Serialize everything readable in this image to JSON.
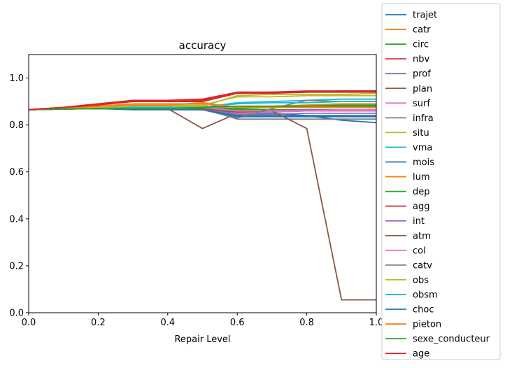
{
  "chart_data": {
    "type": "line",
    "title": "accuracy",
    "xlabel": "Repair Level",
    "ylabel": "",
    "xlim": [
      0,
      1
    ],
    "ylim": [
      0,
      1.1
    ],
    "xticks": [
      "0.0",
      "0.2",
      "0.4",
      "0.6",
      "0.8",
      "1.0"
    ],
    "yticks": [
      "0.0",
      "0.2",
      "0.4",
      "0.6",
      "0.8",
      "1.0"
    ],
    "grid": false,
    "legend_position": "right (outside plot area)",
    "x": [
      0.0,
      0.1,
      0.2,
      0.3,
      0.4,
      0.5,
      0.6,
      0.7,
      0.8,
      0.9,
      1.0
    ],
    "series": [
      {
        "name": "trajet",
        "color": "#1f77b4",
        "values": [
          0.865,
          0.868,
          0.87,
          0.87,
          0.87,
          0.87,
          0.85,
          0.85,
          0.84,
          0.82,
          0.81
        ]
      },
      {
        "name": "catr",
        "color": "#ff7f0e",
        "values": [
          0.865,
          0.87,
          0.88,
          0.89,
          0.89,
          0.89,
          0.875,
          0.88,
          0.885,
          0.89,
          0.89
        ]
      },
      {
        "name": "circ",
        "color": "#2ca02c",
        "values": [
          0.865,
          0.868,
          0.87,
          0.87,
          0.87,
          0.87,
          0.865,
          0.865,
          0.865,
          0.865,
          0.865
        ]
      },
      {
        "name": "nbv",
        "color": "#d62728",
        "values": [
          0.865,
          0.875,
          0.89,
          0.9,
          0.9,
          0.9,
          0.935,
          0.935,
          0.94,
          0.94,
          0.94
        ]
      },
      {
        "name": "prof",
        "color": "#9467bd",
        "values": [
          0.865,
          0.868,
          0.875,
          0.88,
          0.88,
          0.875,
          0.855,
          0.86,
          0.865,
          0.865,
          0.865
        ]
      },
      {
        "name": "plan",
        "color": "#8c564b",
        "values": [
          0.865,
          0.868,
          0.87,
          0.87,
          0.87,
          0.785,
          0.85,
          0.855,
          0.86,
          0.86,
          0.86
        ]
      },
      {
        "name": "surf",
        "color": "#e377c2",
        "values": [
          0.865,
          0.87,
          0.88,
          0.88,
          0.88,
          0.885,
          0.85,
          0.855,
          0.86,
          0.865,
          0.865
        ]
      },
      {
        "name": "infra",
        "color": "#7f7f7f",
        "values": [
          0.865,
          0.868,
          0.87,
          0.87,
          0.87,
          0.87,
          0.825,
          0.825,
          0.825,
          0.825,
          0.825
        ]
      },
      {
        "name": "situ",
        "color": "#bcbd22",
        "values": [
          0.865,
          0.87,
          0.88,
          0.885,
          0.885,
          0.885,
          0.92,
          0.92,
          0.925,
          0.925,
          0.925
        ]
      },
      {
        "name": "vma",
        "color": "#17becf",
        "values": [
          0.865,
          0.868,
          0.87,
          0.875,
          0.875,
          0.875,
          0.895,
          0.9,
          0.905,
          0.91,
          0.91
        ]
      },
      {
        "name": "mois",
        "color": "#1f77b4",
        "values": [
          0.865,
          0.868,
          0.87,
          0.87,
          0.87,
          0.865,
          0.84,
          0.84,
          0.84,
          0.84,
          0.84
        ]
      },
      {
        "name": "lum",
        "color": "#ff7f0e",
        "values": [
          0.865,
          0.87,
          0.875,
          0.88,
          0.88,
          0.88,
          0.87,
          0.875,
          0.875,
          0.875,
          0.875
        ]
      },
      {
        "name": "dep",
        "color": "#2ca02c",
        "values": [
          0.865,
          0.868,
          0.87,
          0.87,
          0.87,
          0.87,
          0.87,
          0.875,
          0.88,
          0.88,
          0.88
        ]
      },
      {
        "name": "agg",
        "color": "#d62728",
        "values": [
          0.865,
          0.875,
          0.89,
          0.905,
          0.905,
          0.91,
          0.94,
          0.94,
          0.945,
          0.945,
          0.945
        ]
      },
      {
        "name": "int",
        "color": "#9467bd",
        "values": [
          0.865,
          0.868,
          0.87,
          0.875,
          0.875,
          0.87,
          0.845,
          0.845,
          0.85,
          0.85,
          0.85
        ]
      },
      {
        "name": "atm",
        "color": "#8c564b",
        "values": [
          0.865,
          0.868,
          0.87,
          0.87,
          0.87,
          0.87,
          0.855,
          0.86,
          0.785,
          0.055,
          0.055
        ]
      },
      {
        "name": "col",
        "color": "#e377c2",
        "values": [
          0.865,
          0.868,
          0.87,
          0.875,
          0.875,
          0.875,
          0.86,
          0.86,
          0.86,
          0.86,
          0.86
        ]
      },
      {
        "name": "catv",
        "color": "#7f7f7f",
        "values": [
          0.865,
          0.868,
          0.87,
          0.87,
          0.87,
          0.865,
          0.83,
          0.87,
          0.905,
          0.9,
          0.9
        ]
      },
      {
        "name": "obs",
        "color": "#bcbd22",
        "values": [
          0.865,
          0.868,
          0.875,
          0.88,
          0.88,
          0.88,
          0.925,
          0.93,
          0.93,
          0.93,
          0.935
        ]
      },
      {
        "name": "obsm",
        "color": "#17becf",
        "values": [
          0.865,
          0.868,
          0.87,
          0.875,
          0.875,
          0.875,
          0.89,
          0.895,
          0.895,
          0.9,
          0.9
        ]
      },
      {
        "name": "choc",
        "color": "#1f77b4",
        "values": [
          0.865,
          0.868,
          0.87,
          0.865,
          0.865,
          0.865,
          0.835,
          0.835,
          0.835,
          0.835,
          0.835
        ]
      },
      {
        "name": "pieton",
        "color": "#ff7f0e",
        "values": [
          0.865,
          0.87,
          0.88,
          0.885,
          0.885,
          0.895,
          0.875,
          0.875,
          0.875,
          0.875,
          0.875
        ]
      },
      {
        "name": "sexe_conducteur",
        "color": "#2ca02c",
        "values": [
          0.865,
          0.868,
          0.87,
          0.87,
          0.87,
          0.875,
          0.88,
          0.88,
          0.88,
          0.885,
          0.885
        ]
      },
      {
        "name": "age",
        "color": "#d62728",
        "values": [
          0.865,
          0.875,
          0.885,
          0.9,
          0.9,
          0.905,
          0.935,
          0.94,
          0.94,
          0.945,
          0.945
        ]
      }
    ]
  }
}
